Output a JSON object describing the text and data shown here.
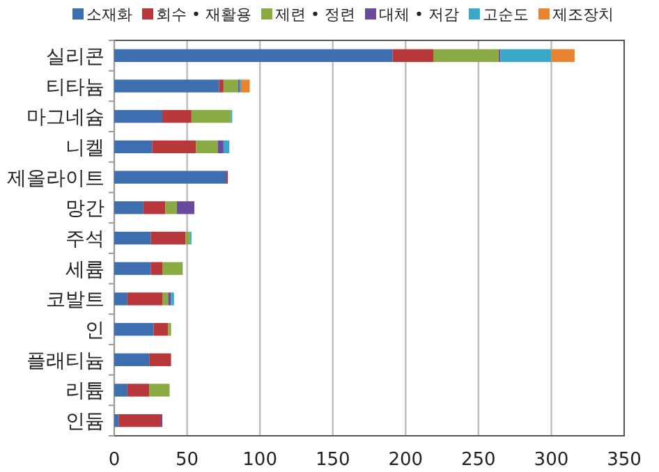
{
  "chart_data": {
    "type": "bar",
    "orientation": "horizontal",
    "stacked": true,
    "categories": [
      "실리콘",
      "티타늄",
      "마그네슘",
      "니켈",
      "제올라이트",
      "망간",
      "주석",
      "세륨",
      "코발트",
      "인",
      "플래티늄",
      "리튬",
      "인듐"
    ],
    "series": [
      {
        "name": "소재화",
        "color": "#3d6fb0",
        "values": [
          191,
          72,
          33,
          26,
          77,
          20,
          25,
          25,
          9,
          27,
          24,
          9,
          3
        ]
      },
      {
        "name": "회수 • 재활용",
        "color": "#b7373a",
        "values": [
          28,
          3,
          20,
          30,
          1,
          15,
          24,
          8,
          24,
          10,
          15,
          15,
          29
        ]
      },
      {
        "name": "제련 • 정련",
        "color": "#8aab44",
        "values": [
          45,
          10,
          27,
          15,
          0,
          8,
          3,
          14,
          4,
          2,
          0,
          14,
          0
        ]
      },
      {
        "name": "대체 • 저감",
        "color": "#6a4a9c",
        "values": [
          1,
          1,
          0,
          4,
          0,
          12,
          0,
          0,
          2,
          0,
          0,
          0,
          1
        ]
      },
      {
        "name": "고순도",
        "color": "#3aa8c8",
        "values": [
          35,
          1,
          1,
          4,
          0,
          0,
          1,
          0,
          2,
          0,
          0,
          0,
          0
        ]
      },
      {
        "name": "제조장치",
        "color": "#e8842f",
        "values": [
          16,
          6,
          0,
          0,
          0,
          0,
          0,
          0,
          0,
          0,
          0,
          0,
          0
        ]
      }
    ],
    "xlim": [
      0,
      350
    ],
    "xticks": [
      0,
      50,
      100,
      150,
      200,
      250,
      300,
      350
    ],
    "grid": "x",
    "legend": "top"
  }
}
